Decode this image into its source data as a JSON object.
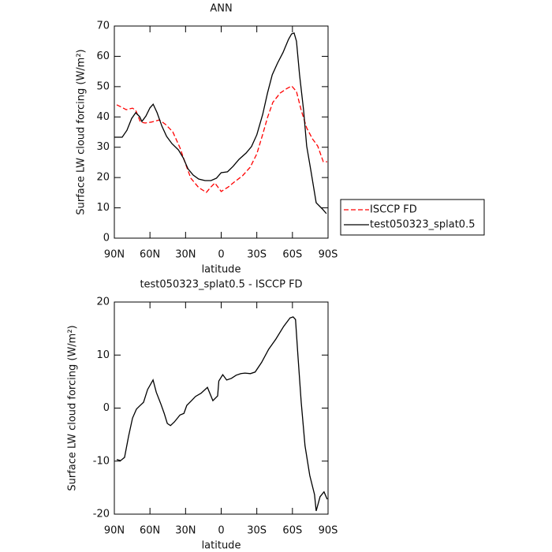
{
  "chart_data": [
    {
      "type": "line",
      "title": "ANN",
      "x_label": "latitude",
      "y_label": "Surface LW cloud forcing (W/m²)",
      "xlim": [
        90,
        -90
      ],
      "xticks": [
        {
          "value": 90,
          "label": "90N"
        },
        {
          "value": 60,
          "label": "60N"
        },
        {
          "value": 30,
          "label": "30N"
        },
        0,
        {
          "value": -30,
          "label": "30S"
        },
        {
          "value": -60,
          "label": "60S"
        },
        {
          "value": -90,
          "label": "90S"
        }
      ],
      "ylim": [
        0,
        70
      ],
      "yticks": [
        0,
        10,
        20,
        30,
        40,
        50,
        60,
        70
      ],
      "legend": "outside-right",
      "series": [
        {
          "name": "ISCCP FD",
          "color": "#ff0000",
          "linestyle": "dashed",
          "x": [
            88,
            85.4,
            80,
            74.7,
            72,
            68,
            64,
            58.8,
            52,
            46.8,
            40.8,
            34.8,
            30,
            25.6,
            19,
            12.5,
            8.6,
            5.3,
            0,
            -6,
            -11,
            -18,
            -24.4,
            -30,
            -35,
            -39,
            -43.5,
            -49.7,
            -55.4,
            -59.4,
            -63.4,
            -67.4,
            -72,
            -76.8,
            -81.3,
            -86,
            -89.3
          ],
          "values": [
            44,
            43.5,
            42.4,
            42.9,
            42.2,
            38.3,
            38,
            38.3,
            39,
            37.5,
            35.1,
            29.9,
            24.5,
            19.8,
            16.7,
            15.1,
            16.9,
            18.2,
            15.4,
            16.9,
            18.5,
            20.6,
            23.4,
            27.8,
            34.3,
            39.8,
            44.8,
            47.9,
            49.4,
            50.2,
            48.4,
            42.2,
            36.4,
            32.8,
            30.4,
            25.2,
            25.2
          ]
        },
        {
          "name": "test050323_splat0.5",
          "color": "#000000",
          "linestyle": "solid",
          "x": [
            90,
            83.4,
            79.4,
            75.4,
            72,
            68.7,
            66.8,
            63.4,
            60,
            57.3,
            54,
            50,
            46,
            41.5,
            36,
            32,
            28,
            23.6,
            19,
            13.6,
            8.6,
            4,
            0,
            -5.3,
            -10,
            -15,
            -21,
            -25.5,
            -30,
            -35,
            -39,
            -43,
            -47.5,
            -52,
            -56.7,
            -59.3,
            -61.4,
            -63.4,
            -66,
            -69.4,
            -72,
            -75.4,
            -80,
            -85.3,
            -88.6
          ],
          "values": [
            33.3,
            33.3,
            35.6,
            39.5,
            41.4,
            40.1,
            38.5,
            40.3,
            43,
            44.2,
            41.4,
            37,
            33.6,
            31.2,
            29.1,
            26.5,
            22.9,
            20.8,
            19.5,
            19,
            19,
            19.8,
            21.6,
            21.9,
            23.7,
            26,
            28.1,
            30.2,
            34.1,
            40.9,
            47.9,
            53.9,
            57.8,
            61.2,
            65.6,
            67.4,
            67.7,
            65,
            53.9,
            42.2,
            30.4,
            22.6,
            11.7,
            9.6,
            8.1
          ]
        }
      ]
    },
    {
      "type": "line",
      "title": "test050323_splat0.5 - ISCCP FD",
      "x_label": "latitude",
      "y_label": "Surface LW cloud forcing (W/m²)",
      "xlim": [
        90,
        -90
      ],
      "xticks": [
        {
          "value": 90,
          "label": "90N"
        },
        {
          "value": 60,
          "label": "60N"
        },
        {
          "value": 30,
          "label": "30N"
        },
        0,
        {
          "value": -30,
          "label": "30S"
        },
        {
          "value": -60,
          "label": "60S"
        },
        {
          "value": -90,
          "label": "90S"
        }
      ],
      "ylim": [
        -20,
        20
      ],
      "yticks": [
        -20,
        -10,
        0,
        10,
        20
      ],
      "color": "#000000",
      "x": [
        88,
        84.7,
        81.4,
        78,
        74.7,
        71.4,
        68.7,
        65.4,
        62,
        57.4,
        54.7,
        50.7,
        48,
        45.4,
        42.7,
        39.4,
        34.7,
        31.4,
        29,
        25,
        21.6,
        17,
        11.6,
        7,
        3,
        2,
        -1.3,
        -4.6,
        -8.6,
        -12.6,
        -16.6,
        -20,
        -24.6,
        -28.6,
        -34,
        -40,
        -46,
        -52.6,
        -58,
        -60.6,
        -62.6,
        -64.6,
        -67.4,
        -70.6,
        -74.6,
        -78.6,
        -80,
        -83.3,
        -86.6,
        -89.3
      ],
      "values": [
        -9.7,
        -9.9,
        -9.3,
        -5.3,
        -1.9,
        -0.2,
        0.4,
        1.1,
        3.5,
        5.3,
        3,
        0.7,
        -1,
        -2.9,
        -3.3,
        -2.6,
        -1.3,
        -1,
        0.5,
        1.4,
        2.2,
        2.8,
        3.9,
        1.4,
        2.3,
        5.1,
        6.3,
        5.3,
        5.6,
        6.2,
        6.5,
        6.6,
        6.5,
        6.8,
        8.6,
        11.1,
        13,
        15.4,
        17,
        17.2,
        16.7,
        10,
        1.1,
        -7.1,
        -12.7,
        -16.3,
        -19.4,
        -16.7,
        -15.8,
        -17.2
      ]
    }
  ]
}
